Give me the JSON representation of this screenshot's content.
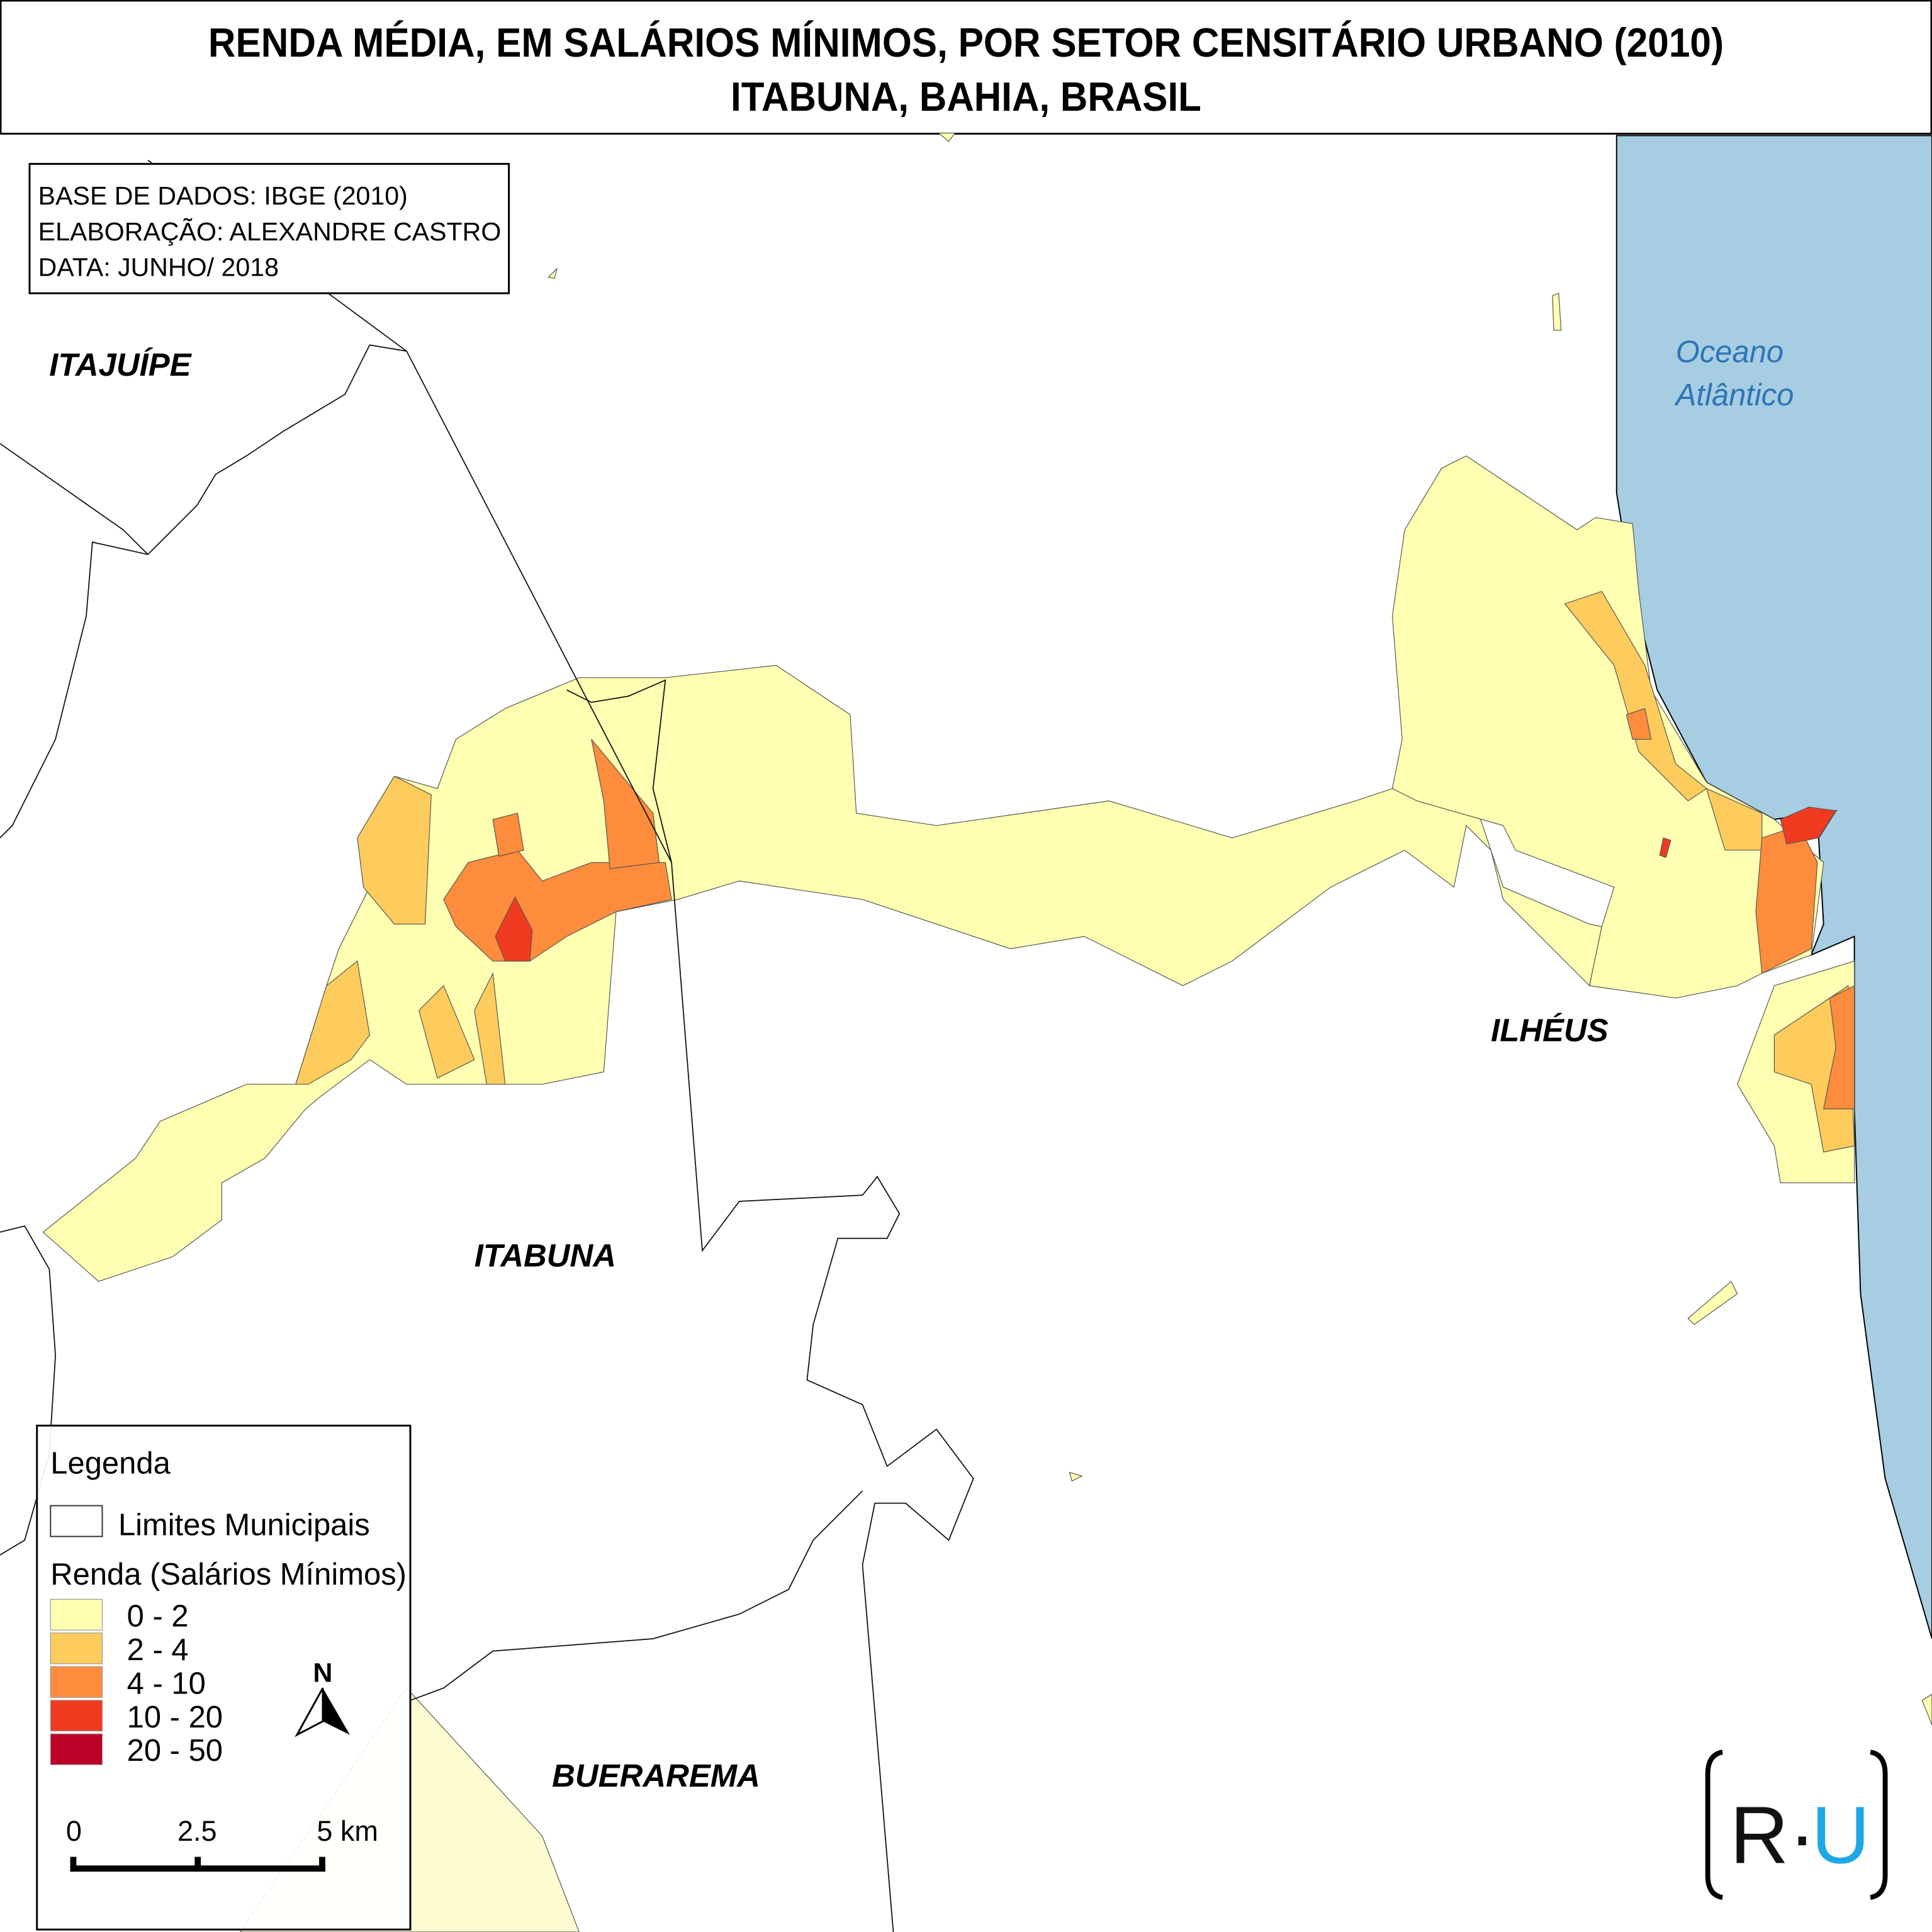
{
  "title": {
    "line1": "RENDA MÉDIA, EM SALÁRIOS MÍNIMOS, POR SETOR CENSITÁRIO URBANO (2010)",
    "line2": "ITABUNA, BAHIA, BRASIL"
  },
  "credits": {
    "line1": "BASE DE DADOS: IBGE (2010)",
    "line2": "ELABORAÇÃO: ALEXANDRE CASTRO",
    "line3": "DATA: JUNHO/ 2018"
  },
  "places": {
    "itajuipe": "ITAJUÍPE",
    "itabuna": "ITABUNA",
    "ilheus": "ILHÉUS",
    "buerarema": "BUERAREMA",
    "ocean_line1": "Oceano",
    "ocean_line2": "Atlântico"
  },
  "legend": {
    "title": "Legenda",
    "boundary_label": "Limites Municipais",
    "income_title": "Renda (Salários Mínimos)",
    "classes": [
      {
        "label": "0 - 2",
        "color": "#ffffb2"
      },
      {
        "label": "2 - 4",
        "color": "#fecc5c"
      },
      {
        "label": "4 - 10",
        "color": "#fd8d3c"
      },
      {
        "label": "10 - 20",
        "color": "#f03b20"
      },
      {
        "label": "20 - 50",
        "color": "#bd0026"
      }
    ]
  },
  "north_arrow": {
    "label": "N"
  },
  "scale_bar": {
    "ticks": [
      "0",
      "2.5",
      "5 km"
    ]
  },
  "logo": {
    "text_left": "R·",
    "text_right": "U",
    "accent": "#1ea7e8"
  },
  "colors": {
    "ocean": "#a6cde2",
    "ocean_label": "#2e75b6"
  }
}
